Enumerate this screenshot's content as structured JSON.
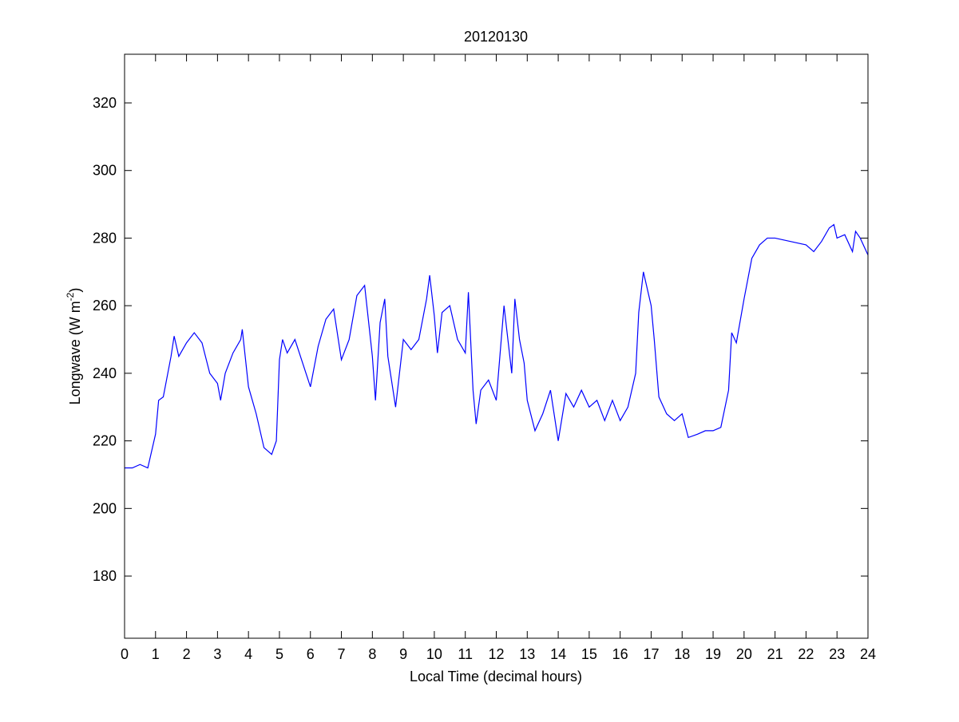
{
  "chart_data": {
    "type": "line",
    "title": "20120130",
    "xlabel": "Local Time (decimal hours)",
    "ylabel": {
      "text": "Longwave (W m",
      "superscript": "-2",
      "suffix": ")"
    },
    "color": "#0000ff",
    "xlim": [
      0,
      24
    ],
    "xticks": [
      0,
      1,
      2,
      3,
      4,
      5,
      6,
      7,
      8,
      9,
      10,
      11,
      12,
      13,
      14,
      15,
      16,
      17,
      18,
      19,
      20,
      21,
      22,
      23,
      24
    ],
    "ylim": [
      161.6,
      334.4
    ],
    "yticks": [
      180,
      200,
      220,
      240,
      260,
      280,
      300,
      320
    ],
    "x": [
      0,
      0.25,
      0.5,
      0.75,
      1.0,
      1.1,
      1.25,
      1.5,
      1.6,
      1.75,
      2.0,
      2.25,
      2.5,
      2.75,
      3.0,
      3.1,
      3.25,
      3.5,
      3.75,
      3.8,
      4.0,
      4.25,
      4.5,
      4.75,
      4.9,
      5.0,
      5.1,
      5.25,
      5.5,
      5.75,
      6.0,
      6.25,
      6.5,
      6.75,
      7.0,
      7.25,
      7.5,
      7.75,
      8.0,
      8.1,
      8.25,
      8.4,
      8.5,
      8.75,
      9.0,
      9.25,
      9.5,
      9.75,
      9.85,
      10.0,
      10.1,
      10.25,
      10.5,
      10.75,
      11.0,
      11.1,
      11.25,
      11.35,
      11.5,
      11.75,
      12.0,
      12.25,
      12.5,
      12.6,
      12.75,
      12.9,
      13.0,
      13.25,
      13.5,
      13.75,
      14.0,
      14.25,
      14.5,
      14.75,
      15.0,
      15.25,
      15.5,
      15.75,
      16.0,
      16.25,
      16.5,
      16.6,
      16.75,
      17.0,
      17.1,
      17.25,
      17.5,
      17.75,
      18.0,
      18.2,
      18.5,
      18.75,
      19.0,
      19.25,
      19.5,
      19.6,
      19.75,
      20.0,
      20.25,
      20.5,
      20.75,
      21.0,
      21.5,
      22.0,
      22.25,
      22.5,
      22.75,
      22.9,
      23.0,
      23.25,
      23.5,
      23.6,
      23.75,
      24.0
    ],
    "values": [
      212,
      212,
      213,
      212,
      222,
      232,
      233,
      245,
      251,
      245,
      249,
      252,
      249,
      240,
      237,
      232,
      240,
      246,
      250,
      253,
      236,
      228,
      218,
      216,
      220,
      244,
      250,
      246,
      250,
      243,
      236,
      248,
      256,
      259,
      244,
      250,
      263,
      266,
      245,
      232,
      255,
      262,
      245,
      230,
      250,
      247,
      250,
      262,
      269,
      257,
      246,
      258,
      260,
      250,
      246,
      264,
      235,
      225,
      235,
      238,
      232,
      260,
      240,
      262,
      250,
      243,
      232,
      223,
      228,
      235,
      220,
      234,
      230,
      235,
      230,
      232,
      226,
      232,
      226,
      230,
      240,
      258,
      270,
      260,
      250,
      233,
      228,
      226,
      228,
      221,
      222,
      223,
      223,
      224,
      235,
      252,
      249,
      262,
      274,
      278,
      280,
      280,
      279,
      278,
      276,
      279,
      283,
      284,
      280,
      281,
      276,
      282,
      280,
      275
    ]
  }
}
